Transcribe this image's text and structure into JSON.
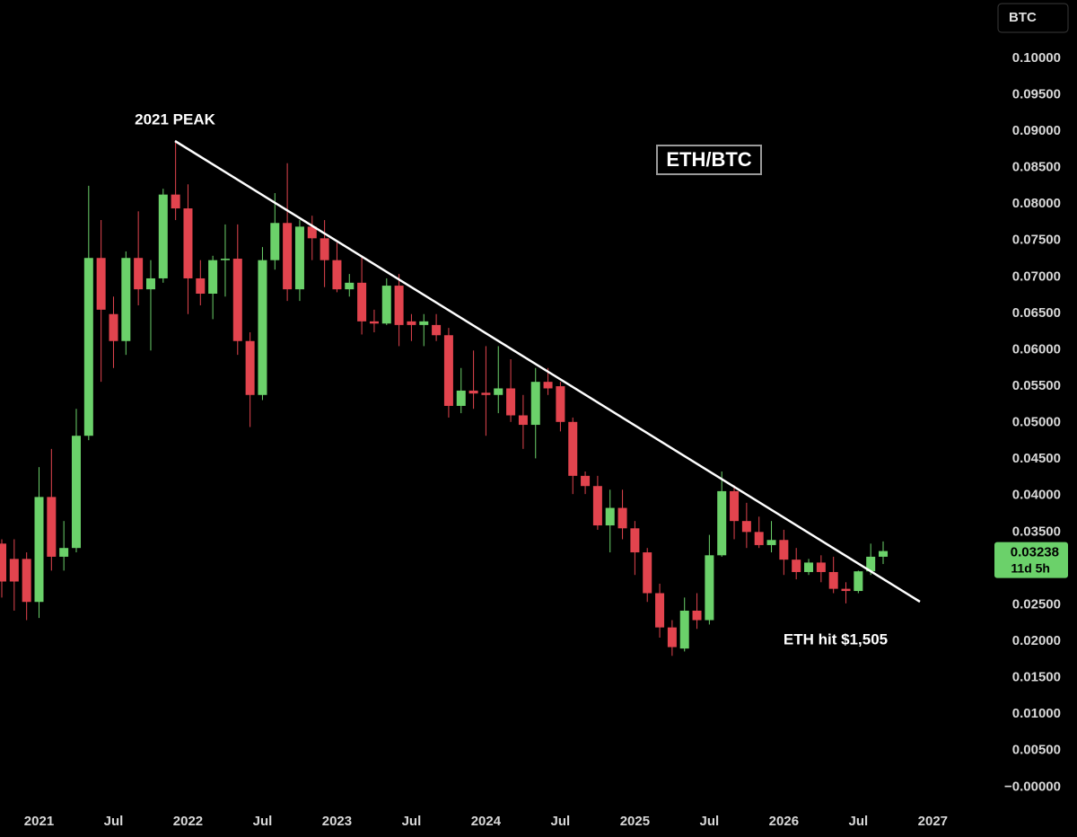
{
  "chart_data": {
    "type": "candlestick",
    "title": "ETH/BTC",
    "currency": "BTC",
    "annotations": [
      "2021 PEAK",
      "ETH hit $1,505"
    ],
    "countdown": "11d 5h",
    "up_color": "#6bd16a",
    "down_color": "#e2444e",
    "x": [
      "2020-10",
      "2020-11",
      "2020-12",
      "2021-01",
      "2021-02",
      "2021-03",
      "2021-04",
      "2021-05",
      "2021-06",
      "2021-07",
      "2021-08",
      "2021-09",
      "2021-10",
      "2021-11",
      "2021-12",
      "2022-01",
      "2022-02",
      "2022-03",
      "2022-04",
      "2022-05",
      "2022-06",
      "2022-07",
      "2022-08",
      "2022-09",
      "2022-10",
      "2022-11",
      "2022-12",
      "2023-01",
      "2023-02",
      "2023-03",
      "2023-04",
      "2023-05",
      "2023-06",
      "2023-07",
      "2023-08",
      "2023-09",
      "2023-10",
      "2023-11",
      "2023-12",
      "2024-01",
      "2024-02",
      "2024-03",
      "2024-04",
      "2024-05",
      "2024-06",
      "2024-07",
      "2024-08",
      "2024-09",
      "2024-10",
      "2024-11",
      "2024-12",
      "2025-01",
      "2025-02",
      "2025-03",
      "2025-04",
      "2025-05",
      "2025-06",
      "2025-07",
      "2025-08",
      "2025-09",
      "2025-10",
      "2025-11",
      "2025-12",
      "2026-01",
      "2026-02",
      "2026-03",
      "2026-04",
      "2026-05",
      "2026-06",
      "2026-07",
      "2026-08",
      "2026-09"
    ],
    "open": [
      0.0334,
      0.0313,
      0.0313,
      0.0254,
      0.0398,
      0.0316,
      0.0328,
      0.0482,
      0.0726,
      0.0649,
      0.0612,
      0.0726,
      0.0683,
      0.0698,
      0.0813,
      0.0794,
      0.0698,
      0.0677,
      0.0723,
      0.0725,
      0.0612,
      0.0538,
      0.0723,
      0.0774,
      0.0683,
      0.0769,
      0.0753,
      0.0723,
      0.0683,
      0.0692,
      0.0639,
      0.0636,
      0.0688,
      0.0639,
      0.0634,
      0.0634,
      0.062,
      0.0523,
      0.0544,
      0.0541,
      0.0538,
      0.0547,
      0.051,
      0.0497,
      0.0556,
      0.055,
      0.0501,
      0.0427,
      0.0413,
      0.0359,
      0.0383,
      0.0355,
      0.0322,
      0.0266,
      0.0219,
      0.019,
      0.0242,
      0.0229,
      0.0318,
      0.0406,
      0.0365,
      0.035,
      0.0332,
      0.0339,
      0.0312,
      0.0295,
      0.0308,
      0.0295,
      0.0272,
      0.0269,
      0.0296,
      0.0316
    ],
    "high": [
      0.034,
      0.034,
      0.0322,
      0.0439,
      0.0464,
      0.0365,
      0.0519,
      0.0825,
      0.0778,
      0.0673,
      0.0735,
      0.079,
      0.0723,
      0.0821,
      0.0887,
      0.0827,
      0.0723,
      0.0729,
      0.0772,
      0.0772,
      0.0624,
      0.0741,
      0.0815,
      0.0856,
      0.0778,
      0.0784,
      0.0778,
      0.0747,
      0.0704,
      0.0729,
      0.0655,
      0.0698,
      0.0704,
      0.0649,
      0.0649,
      0.0649,
      0.063,
      0.0575,
      0.0599,
      0.0605,
      0.0605,
      0.0587,
      0.0538,
      0.0575,
      0.0575,
      0.0556,
      0.0507,
      0.0433,
      0.0427,
      0.0408,
      0.0408,
      0.0365,
      0.0328,
      0.0279,
      0.0229,
      0.026,
      0.0266,
      0.0346,
      0.0433,
      0.0414,
      0.039,
      0.0371,
      0.0365,
      0.0353,
      0.0328,
      0.0313,
      0.0318,
      0.0316,
      0.0281,
      0.0297,
      0.0334,
      0.0337
    ],
    "low": [
      0.026,
      0.0242,
      0.0229,
      0.0232,
      0.0297,
      0.0297,
      0.0322,
      0.0476,
      0.0556,
      0.0575,
      0.0593,
      0.0661,
      0.0599,
      0.0692,
      0.0778,
      0.0649,
      0.0661,
      0.0642,
      0.0673,
      0.0593,
      0.0494,
      0.0531,
      0.071,
      0.0667,
      0.0667,
      0.0723,
      0.0686,
      0.0679,
      0.0673,
      0.0621,
      0.0624,
      0.0634,
      0.0605,
      0.0612,
      0.0605,
      0.0612,
      0.0507,
      0.0513,
      0.0519,
      0.0482,
      0.0513,
      0.0501,
      0.0464,
      0.0451,
      0.0538,
      0.0488,
      0.0402,
      0.0402,
      0.0353,
      0.0322,
      0.034,
      0.0291,
      0.0254,
      0.0205,
      0.018,
      0.0186,
      0.0217,
      0.0223,
      0.0316,
      0.034,
      0.0328,
      0.0328,
      0.0322,
      0.0291,
      0.0285,
      0.0291,
      0.0281,
      0.0266,
      0.0252,
      0.0266,
      0.0291,
      0.0306
    ],
    "close": [
      0.0282,
      0.0282,
      0.0254,
      0.0398,
      0.0316,
      0.0328,
      0.0482,
      0.0726,
      0.0655,
      0.0612,
      0.0726,
      0.0683,
      0.0698,
      0.0813,
      0.0794,
      0.0698,
      0.0677,
      0.0723,
      0.0725,
      0.0612,
      0.0538,
      0.0723,
      0.0774,
      0.0683,
      0.0769,
      0.0753,
      0.0723,
      0.0683,
      0.0692,
      0.0639,
      0.0636,
      0.0688,
      0.0634,
      0.0634,
      0.0639,
      0.062,
      0.0523,
      0.0544,
      0.054,
      0.0538,
      0.0547,
      0.051,
      0.0497,
      0.0556,
      0.0547,
      0.0501,
      0.0427,
      0.0413,
      0.0359,
      0.0383,
      0.0355,
      0.0322,
      0.0266,
      0.0219,
      0.0192,
      0.0242,
      0.0229,
      0.0318,
      0.0406,
      0.0365,
      0.035,
      0.0332,
      0.0339,
      0.0312,
      0.0295,
      0.0308,
      0.0295,
      0.0272,
      0.0269,
      0.0296,
      0.0316,
      0.03238
    ],
    "xlim": [
      "2020-10",
      "2027-03"
    ],
    "xticks": [
      {
        "value": "2021-01",
        "label": "2021"
      },
      {
        "value": "2021-07",
        "label": "Jul"
      },
      {
        "value": "2022-01",
        "label": "2022"
      },
      {
        "value": "2022-07",
        "label": "Jul"
      },
      {
        "value": "2023-01",
        "label": "2023"
      },
      {
        "value": "2023-07",
        "label": "Jul"
      },
      {
        "value": "2024-01",
        "label": "2024"
      },
      {
        "value": "2024-07",
        "label": "Jul"
      },
      {
        "value": "2025-01",
        "label": "2025"
      },
      {
        "value": "2025-07",
        "label": "Jul"
      },
      {
        "value": "2026-01",
        "label": "2026"
      },
      {
        "value": "2026-07",
        "label": "Jul"
      },
      {
        "value": "2027-01",
        "label": "2027"
      }
    ],
    "ylim": [
      -0.0023,
      0.108
    ],
    "yticks": [
      {
        "value": 0,
        "label": "−0.00000"
      },
      {
        "value": 0.005,
        "label": "0.00500"
      },
      {
        "value": 0.01,
        "label": "0.01000"
      },
      {
        "value": 0.015,
        "label": "0.01500"
      },
      {
        "value": 0.02,
        "label": "0.02000"
      },
      {
        "value": 0.025,
        "label": "0.02500"
      },
      {
        "value": 0.03,
        "label": "0.03000"
      },
      {
        "value": 0.035,
        "label": "0.03500"
      },
      {
        "value": 0.04,
        "label": "0.04000"
      },
      {
        "value": 0.045,
        "label": "0.04500"
      },
      {
        "value": 0.05,
        "label": "0.05000"
      },
      {
        "value": 0.055,
        "label": "0.05500"
      },
      {
        "value": 0.06,
        "label": "0.06000"
      },
      {
        "value": 0.065,
        "label": "0.06500"
      },
      {
        "value": 0.07,
        "label": "0.07000"
      },
      {
        "value": 0.075,
        "label": "0.07500"
      },
      {
        "value": 0.08,
        "label": "0.08000"
      },
      {
        "value": 0.085,
        "label": "0.08500"
      },
      {
        "value": 0.09,
        "label": "0.09000"
      },
      {
        "value": 0.095,
        "label": "0.09500"
      },
      {
        "value": 0.1,
        "label": "0.10000"
      }
    ],
    "grid": false
  }
}
